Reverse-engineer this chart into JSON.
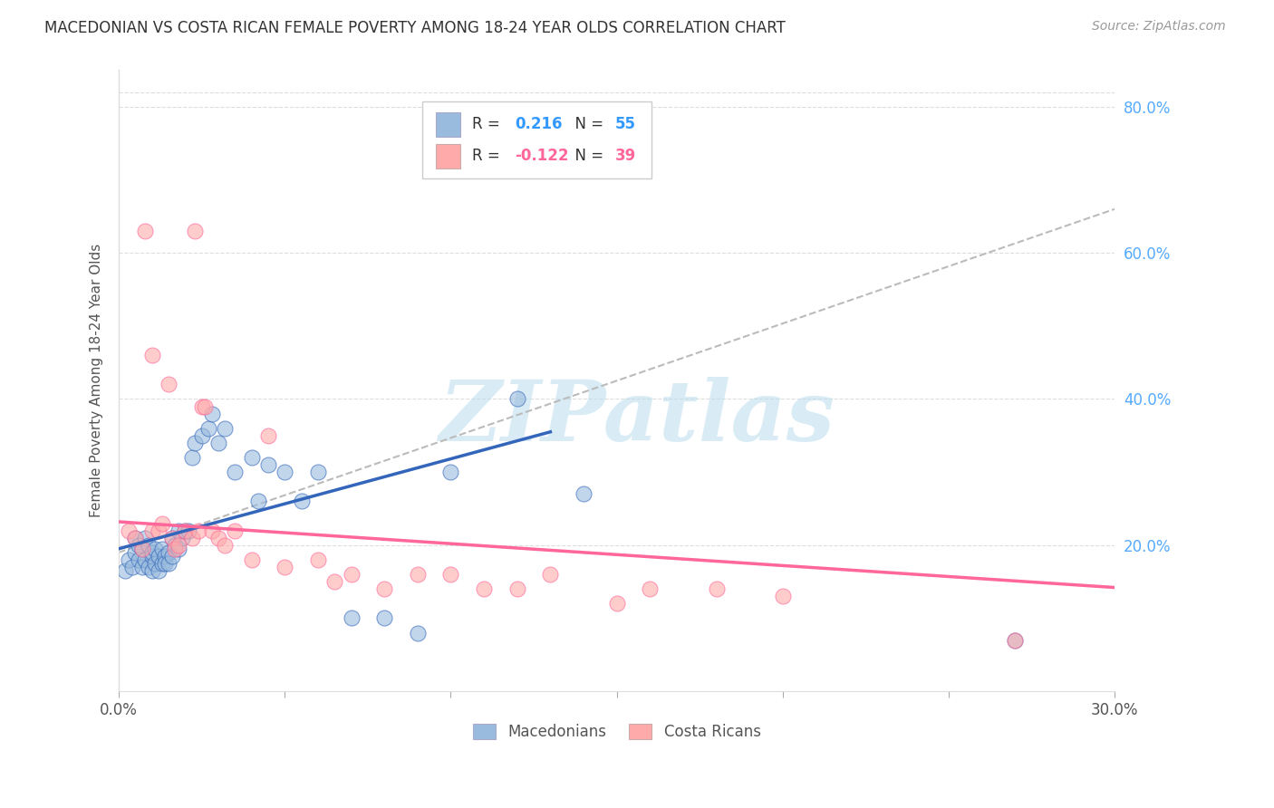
{
  "title": "MACEDONIAN VS COSTA RICAN FEMALE POVERTY AMONG 18-24 YEAR OLDS CORRELATION CHART",
  "source": "Source: ZipAtlas.com",
  "ylabel": "Female Poverty Among 18-24 Year Olds",
  "xlim": [
    0.0,
    0.3
  ],
  "ylim": [
    0.0,
    0.85
  ],
  "xtick_positions": [
    0.0,
    0.05,
    0.1,
    0.15,
    0.2,
    0.25,
    0.3
  ],
  "xtick_labels": [
    "0.0%",
    "",
    "",
    "",
    "",
    "",
    "30.0%"
  ],
  "yticks_right": [
    0.2,
    0.4,
    0.6,
    0.8
  ],
  "blue_R": "0.216",
  "blue_N": "55",
  "pink_R": "-0.122",
  "pink_N": "39",
  "blue_color": "#99BBDD",
  "pink_color": "#FFAAAA",
  "blue_line_color": "#3366BB",
  "pink_line_color": "#FF6699",
  "gray_line_color": "#BBBBBB",
  "background_color": "#FFFFFF",
  "watermark_text": "ZIPatlas",
  "watermark_color": "#BBDDEE",
  "legend_R_color": "#000000",
  "legend_val_color": "#3399FF",
  "blue_scatter_x": [
    0.002,
    0.003,
    0.004,
    0.005,
    0.005,
    0.006,
    0.006,
    0.007,
    0.007,
    0.008,
    0.008,
    0.009,
    0.009,
    0.01,
    0.01,
    0.01,
    0.011,
    0.011,
    0.012,
    0.012,
    0.013,
    0.013,
    0.014,
    0.014,
    0.015,
    0.015,
    0.016,
    0.016,
    0.017,
    0.018,
    0.018,
    0.019,
    0.02,
    0.021,
    0.022,
    0.023,
    0.025,
    0.027,
    0.028,
    0.03,
    0.032,
    0.035,
    0.04,
    0.042,
    0.045,
    0.05,
    0.055,
    0.06,
    0.07,
    0.08,
    0.09,
    0.1,
    0.12,
    0.14,
    0.27
  ],
  "blue_scatter_y": [
    0.165,
    0.18,
    0.17,
    0.21,
    0.19,
    0.18,
    0.2,
    0.17,
    0.195,
    0.18,
    0.21,
    0.17,
    0.2,
    0.185,
    0.19,
    0.165,
    0.195,
    0.175,
    0.185,
    0.165,
    0.195,
    0.175,
    0.185,
    0.175,
    0.19,
    0.175,
    0.185,
    0.21,
    0.2,
    0.195,
    0.22,
    0.21,
    0.22,
    0.22,
    0.32,
    0.34,
    0.35,
    0.36,
    0.38,
    0.34,
    0.36,
    0.3,
    0.32,
    0.26,
    0.31,
    0.3,
    0.26,
    0.3,
    0.1,
    0.1,
    0.08,
    0.3,
    0.4,
    0.27,
    0.07
  ],
  "pink_scatter_x": [
    0.003,
    0.005,
    0.007,
    0.008,
    0.01,
    0.01,
    0.012,
    0.013,
    0.015,
    0.016,
    0.017,
    0.018,
    0.02,
    0.022,
    0.023,
    0.024,
    0.025,
    0.026,
    0.028,
    0.03,
    0.032,
    0.035,
    0.04,
    0.045,
    0.05,
    0.06,
    0.065,
    0.07,
    0.08,
    0.09,
    0.1,
    0.11,
    0.12,
    0.13,
    0.15,
    0.16,
    0.18,
    0.2,
    0.27
  ],
  "pink_scatter_y": [
    0.22,
    0.21,
    0.195,
    0.63,
    0.46,
    0.22,
    0.22,
    0.23,
    0.42,
    0.21,
    0.195,
    0.2,
    0.22,
    0.21,
    0.63,
    0.22,
    0.39,
    0.39,
    0.22,
    0.21,
    0.2,
    0.22,
    0.18,
    0.35,
    0.17,
    0.18,
    0.15,
    0.16,
    0.14,
    0.16,
    0.16,
    0.14,
    0.14,
    0.16,
    0.12,
    0.14,
    0.14,
    0.13,
    0.07
  ],
  "blue_trend_x": [
    0.0,
    0.13
  ],
  "blue_trend_y": [
    0.195,
    0.355
  ],
  "pink_trend_x": [
    0.0,
    0.3
  ],
  "pink_trend_y": [
    0.232,
    0.142
  ],
  "gray_trend_x": [
    0.0,
    0.3
  ],
  "gray_trend_y": [
    0.19,
    0.66
  ]
}
